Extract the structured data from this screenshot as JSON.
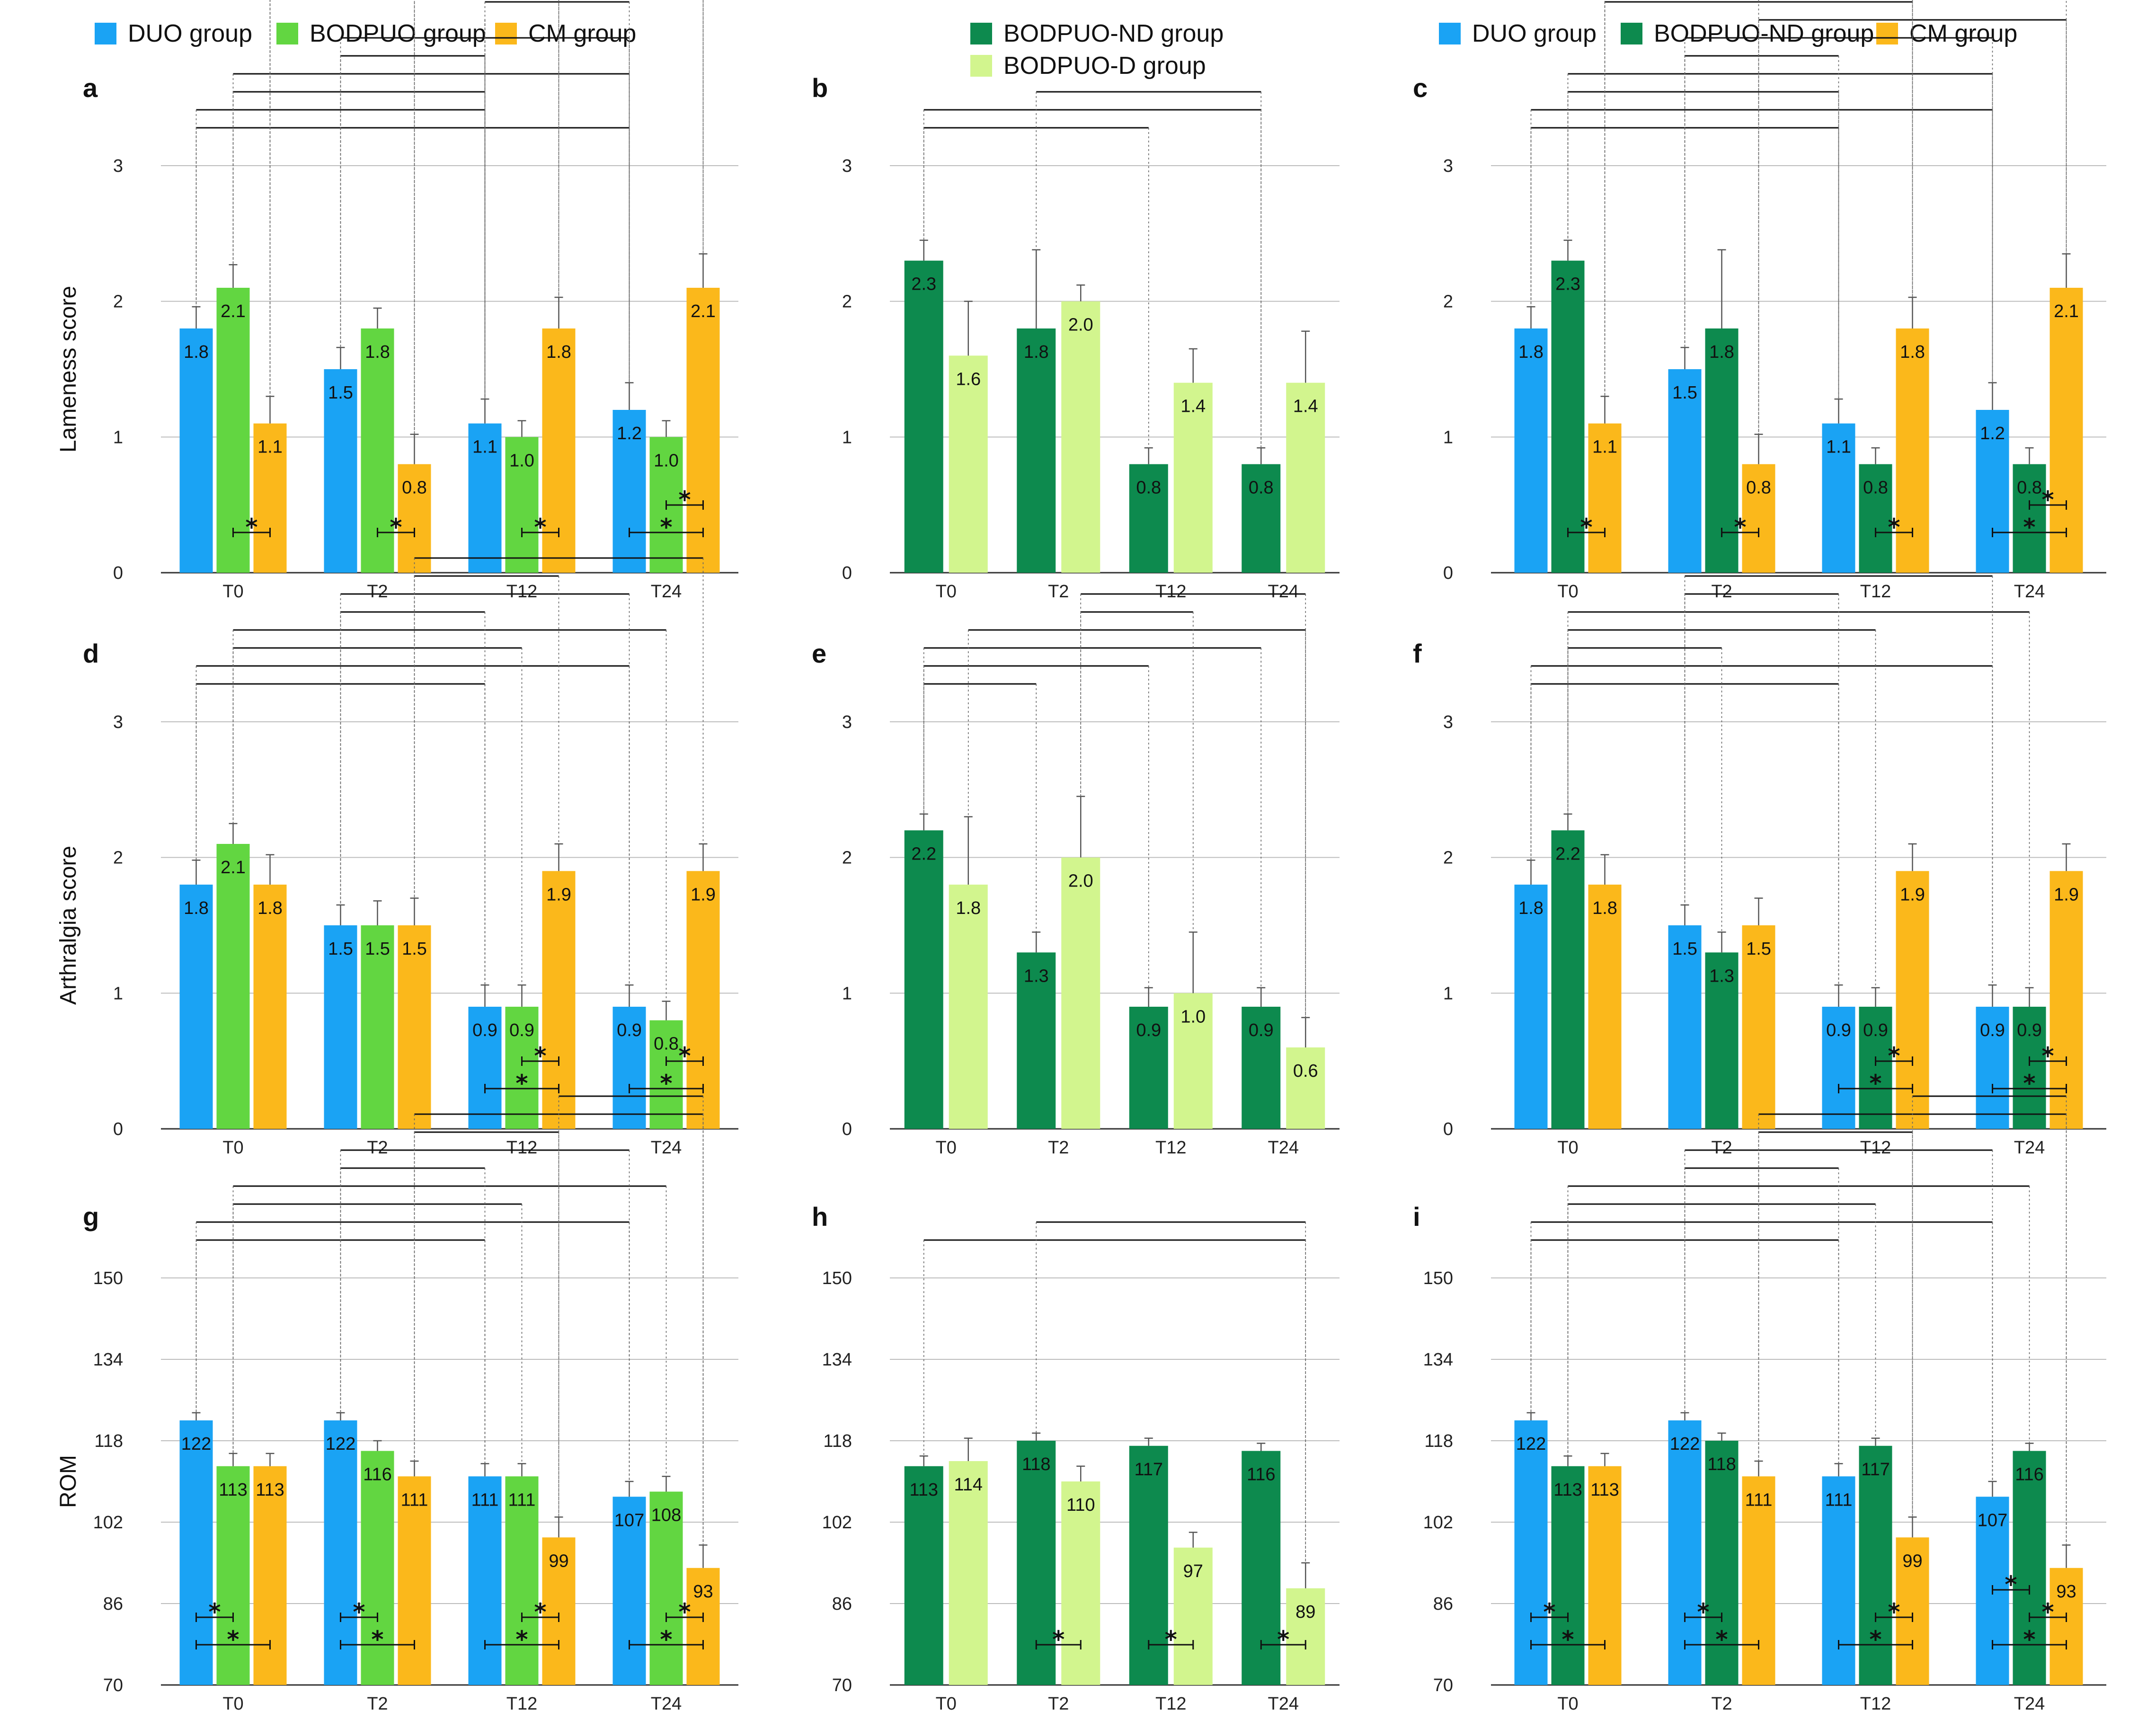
{
  "colors": {
    "DUO group": "#1aa3f4",
    "BODPUO group": "#62d641",
    "CM group": "#fbb81b",
    "BODPUO-ND group": "#0d8a4e",
    "BODPUO-D group": "#d2f58e"
  },
  "legends": [
    {
      "items": [
        "DUO group",
        "BODPUO group",
        "CM group"
      ]
    },
    {
      "items": [
        "BODPUO-ND group",
        "BODPUO-D group"
      ]
    },
    {
      "items": [
        "DUO group",
        "BODPUO-ND group",
        "CM group"
      ]
    }
  ],
  "chart_data": [
    {
      "panel": "a",
      "type": "bar",
      "ylabel": "Lameness score",
      "ylim": [
        0,
        3
      ],
      "yticks": [
        "0",
        "1",
        "2",
        "3"
      ],
      "categories": [
        "T0",
        "T2",
        "T12",
        "T24"
      ],
      "series": [
        {
          "name": "DUO group",
          "values": [
            1.8,
            1.5,
            1.1,
            1.2
          ],
          "labels": [
            "1.8",
            "1.5",
            "1.1",
            "1.2"
          ],
          "err": [
            0.16,
            0.16,
            0.18,
            0.2
          ]
        },
        {
          "name": "BODPUO group",
          "values": [
            2.1,
            1.8,
            1.0,
            1.0
          ],
          "labels": [
            "2.1",
            "1.8",
            "1.0",
            "1.0"
          ],
          "err": [
            0.17,
            0.15,
            0.12,
            0.12
          ]
        },
        {
          "name": "CM group",
          "values": [
            1.1,
            0.8,
            1.8,
            2.1
          ],
          "labels": [
            "1.1",
            "0.8",
            "1.8",
            "2.1"
          ],
          "err": [
            0.2,
            0.22,
            0.23,
            0.25
          ]
        }
      ],
      "stars": [
        [
          1,
          2
        ],
        [
          1,
          2
        ],
        [
          1,
          2
        ],
        [
          1,
          2
        ],
        [
          0,
          2
        ]
      ],
      "star_cats": [
        0,
        1,
        2,
        3,
        3
      ],
      "brackets": [
        [
          0,
          0,
          3,
          0
        ],
        [
          0,
          0,
          2,
          0
        ],
        [
          0,
          1,
          2,
          0
        ],
        [
          0,
          1,
          3,
          0
        ],
        [
          1,
          0,
          2,
          0
        ],
        [
          1,
          0,
          3,
          0
        ],
        [
          2,
          0,
          2,
          0
        ],
        [
          2,
          0,
          3,
          0
        ],
        [
          1,
          2,
          3,
          2
        ],
        [
          0,
          2,
          2,
          2
        ],
        [
          0,
          2,
          3,
          2
        ],
        [
          1,
          2,
          2,
          2
        ]
      ]
    },
    {
      "panel": "b",
      "type": "bar",
      "ylabel": "",
      "ylim": [
        0,
        3
      ],
      "yticks": [
        "0",
        "1",
        "2",
        "3"
      ],
      "categories": [
        "T0",
        "T2",
        "T12",
        "T24"
      ],
      "series": [
        {
          "name": "BODPUO-ND group",
          "values": [
            2.3,
            1.8,
            0.8,
            0.8
          ],
          "labels": [
            "2.3",
            "1.8",
            "0.8",
            "0.8"
          ],
          "err": [
            0.15,
            0.58,
            0.12,
            0.12
          ]
        },
        {
          "name": "BODPUO-D group",
          "values": [
            1.6,
            2.0,
            1.4,
            1.4
          ],
          "labels": [
            "1.6",
            "2.0",
            "1.4",
            "1.4"
          ],
          "err": [
            0.4,
            0.12,
            0.25,
            0.38
          ]
        }
      ],
      "stars": [],
      "star_cats": [],
      "brackets": [
        [
          0,
          0,
          2,
          0
        ],
        [
          0,
          0,
          3,
          0
        ],
        [
          1,
          0,
          3,
          0
        ]
      ]
    },
    {
      "panel": "c",
      "type": "bar",
      "ylabel": "",
      "ylim": [
        0,
        3
      ],
      "yticks": [
        "0",
        "1",
        "2",
        "3"
      ],
      "categories": [
        "T0",
        "T2",
        "T12",
        "T24"
      ],
      "series": [
        {
          "name": "DUO group",
          "values": [
            1.8,
            1.5,
            1.1,
            1.2
          ],
          "labels": [
            "1.8",
            "1.5",
            "1.1",
            "1.2"
          ],
          "err": [
            0.16,
            0.16,
            0.18,
            0.2
          ]
        },
        {
          "name": "BODPUO-ND group",
          "values": [
            2.3,
            1.8,
            0.8,
            0.8
          ],
          "labels": [
            "2.3",
            "1.8",
            "0.8",
            "0.8"
          ],
          "err": [
            0.15,
            0.58,
            0.12,
            0.12
          ]
        },
        {
          "name": "CM group",
          "values": [
            1.1,
            0.8,
            1.8,
            2.1
          ],
          "labels": [
            "1.1",
            "0.8",
            "1.8",
            "2.1"
          ],
          "err": [
            0.2,
            0.22,
            0.23,
            0.25
          ]
        }
      ],
      "stars": [
        [
          1,
          2
        ],
        [
          1,
          2
        ],
        [
          1,
          2
        ],
        [
          1,
          2
        ],
        [
          0,
          2
        ]
      ],
      "star_cats": [
        0,
        1,
        2,
        3,
        3
      ],
      "brackets": [
        [
          0,
          0,
          2,
          0
        ],
        [
          0,
          0,
          3,
          0
        ],
        [
          0,
          1,
          2,
          0
        ],
        [
          0,
          1,
          3,
          0
        ],
        [
          1,
          0,
          2,
          0
        ],
        [
          1,
          0,
          3,
          0
        ],
        [
          1,
          2,
          3,
          2
        ],
        [
          0,
          2,
          2,
          2
        ],
        [
          0,
          2,
          3,
          2
        ],
        [
          1,
          2,
          2,
          2
        ]
      ]
    },
    {
      "panel": "d",
      "type": "bar",
      "ylabel": "Arthralgia score",
      "ylim": [
        0,
        3
      ],
      "yticks": [
        "0",
        "1",
        "2",
        "3"
      ],
      "categories": [
        "T0",
        "T2",
        "T12",
        "T24"
      ],
      "series": [
        {
          "name": "DUO group",
          "values": [
            1.8,
            1.5,
            0.9,
            0.9
          ],
          "labels": [
            "1.8",
            "1.5",
            "0.9",
            "0.9"
          ],
          "err": [
            0.18,
            0.15,
            0.16,
            0.16
          ]
        },
        {
          "name": "BODPUO group",
          "values": [
            2.1,
            1.5,
            0.9,
            0.8
          ],
          "labels": [
            "2.1",
            "1.5",
            "0.9",
            "0.8"
          ],
          "err": [
            0.15,
            0.18,
            0.16,
            0.14
          ]
        },
        {
          "name": "CM group",
          "values": [
            1.8,
            1.5,
            1.9,
            1.9
          ],
          "labels": [
            "1.8",
            "1.5",
            "1.9",
            "1.9"
          ],
          "err": [
            0.22,
            0.2,
            0.2,
            0.2
          ]
        }
      ],
      "stars": [
        [
          1,
          2
        ],
        [
          0,
          2
        ],
        [
          1,
          2
        ],
        [
          0,
          2
        ]
      ],
      "star_cats": [
        2,
        2,
        3,
        3
      ],
      "brackets": [
        [
          0,
          0,
          2,
          0
        ],
        [
          0,
          0,
          3,
          0
        ],
        [
          0,
          1,
          2,
          1
        ],
        [
          0,
          1,
          3,
          1
        ],
        [
          1,
          0,
          2,
          0
        ],
        [
          1,
          0,
          3,
          0
        ],
        [
          1,
          2,
          2,
          2
        ],
        [
          1,
          2,
          3,
          2
        ]
      ]
    },
    {
      "panel": "e",
      "type": "bar",
      "ylabel": "",
      "ylim": [
        0,
        3
      ],
      "yticks": [
        "0",
        "1",
        "2",
        "3"
      ],
      "categories": [
        "T0",
        "T2",
        "T12",
        "T24"
      ],
      "series": [
        {
          "name": "BODPUO-ND group",
          "values": [
            2.2,
            1.3,
            0.9,
            0.9
          ],
          "labels": [
            "2.2",
            "1.3",
            "0.9",
            "0.9"
          ],
          "err": [
            0.12,
            0.15,
            0.14,
            0.14
          ]
        },
        {
          "name": "BODPUO-D group",
          "values": [
            1.8,
            2.0,
            1.0,
            0.6
          ],
          "labels": [
            "1.8",
            "2.0",
            "1.0",
            "0.6"
          ],
          "err": [
            0.5,
            0.45,
            0.45,
            0.22
          ]
        }
      ],
      "stars": [],
      "star_cats": [],
      "brackets": [
        [
          0,
          0,
          1,
          0
        ],
        [
          0,
          0,
          2,
          0
        ],
        [
          0,
          0,
          3,
          0
        ],
        [
          0,
          1,
          3,
          1
        ],
        [
          1,
          1,
          2,
          1
        ],
        [
          1,
          1,
          3,
          1
        ]
      ]
    },
    {
      "panel": "f",
      "type": "bar",
      "ylabel": "",
      "ylim": [
        0,
        3
      ],
      "yticks": [
        "0",
        "1",
        "2",
        "3"
      ],
      "categories": [
        "T0",
        "T2",
        "T12",
        "T24"
      ],
      "series": [
        {
          "name": "DUO group",
          "values": [
            1.8,
            1.5,
            0.9,
            0.9
          ],
          "labels": [
            "1.8",
            "1.5",
            "0.9",
            "0.9"
          ],
          "err": [
            0.18,
            0.15,
            0.16,
            0.16
          ]
        },
        {
          "name": "BODPUO-ND group",
          "values": [
            2.2,
            1.3,
            0.9,
            0.9
          ],
          "labels": [
            "2.2",
            "1.3",
            "0.9",
            "0.9"
          ],
          "err": [
            0.12,
            0.15,
            0.14,
            0.14
          ]
        },
        {
          "name": "CM group",
          "values": [
            1.8,
            1.5,
            1.9,
            1.9
          ],
          "labels": [
            "1.8",
            "1.5",
            "1.9",
            "1.9"
          ],
          "err": [
            0.22,
            0.2,
            0.2,
            0.2
          ]
        }
      ],
      "stars": [
        [
          1,
          2
        ],
        [
          0,
          2
        ],
        [
          1,
          2
        ],
        [
          0,
          2
        ]
      ],
      "star_cats": [
        2,
        2,
        3,
        3
      ],
      "brackets": [
        [
          0,
          0,
          2,
          0
        ],
        [
          0,
          0,
          3,
          0
        ],
        [
          0,
          1,
          1,
          1
        ],
        [
          0,
          1,
          2,
          1
        ],
        [
          0,
          1,
          3,
          1
        ],
        [
          1,
          0,
          2,
          0
        ],
        [
          1,
          0,
          3,
          0
        ]
      ]
    },
    {
      "panel": "g",
      "type": "bar",
      "ylabel": "ROM",
      "ylim": [
        70,
        150
      ],
      "yticks": [
        "70",
        "86",
        "102",
        "118",
        "134",
        "150"
      ],
      "categories": [
        "T0",
        "T2",
        "T12",
        "T24"
      ],
      "series": [
        {
          "name": "DUO group",
          "values": [
            122,
            122,
            111,
            107
          ],
          "labels": [
            "122",
            "122",
            "111",
            "107"
          ],
          "err": [
            1.5,
            1.5,
            2.5,
            3
          ]
        },
        {
          "name": "BODPUO group",
          "values": [
            113,
            116,
            111,
            108
          ],
          "labels": [
            "113",
            "116",
            "111",
            "108"
          ],
          "err": [
            2.5,
            2,
            2.5,
            3
          ]
        },
        {
          "name": "CM group",
          "values": [
            113,
            111,
            99,
            93
          ],
          "labels": [
            "113",
            "111",
            "99",
            "93"
          ],
          "err": [
            2.5,
            3,
            4,
            4.5
          ]
        }
      ],
      "stars": [
        [
          0,
          1
        ],
        [
          0,
          2
        ],
        [
          0,
          1
        ],
        [
          0,
          2
        ],
        [
          1,
          2
        ],
        [
          0,
          2
        ],
        [
          1,
          2
        ],
        [
          0,
          2
        ]
      ],
      "star_cats": [
        0,
        0,
        1,
        1,
        2,
        2,
        3,
        3
      ],
      "brackets": [
        [
          0,
          0,
          2,
          0
        ],
        [
          0,
          0,
          3,
          0
        ],
        [
          0,
          1,
          2,
          1
        ],
        [
          0,
          1,
          3,
          1
        ],
        [
          1,
          0,
          2,
          0
        ],
        [
          1,
          0,
          3,
          0
        ],
        [
          1,
          2,
          2,
          2
        ],
        [
          1,
          2,
          3,
          2
        ],
        [
          2,
          2,
          3,
          2
        ]
      ]
    },
    {
      "panel": "h",
      "type": "bar",
      "ylabel": "",
      "ylim": [
        70,
        150
      ],
      "yticks": [
        "70",
        "86",
        "102",
        "118",
        "134",
        "150"
      ],
      "categories": [
        "T0",
        "T2",
        "T12",
        "T24"
      ],
      "series": [
        {
          "name": "BODPUO-ND group",
          "values": [
            113,
            118,
            117,
            116
          ],
          "labels": [
            "113",
            "118",
            "117",
            "116"
          ],
          "err": [
            2,
            1.5,
            1.5,
            1.5
          ]
        },
        {
          "name": "BODPUO-D group",
          "values": [
            114,
            110,
            97,
            89
          ],
          "labels": [
            "114",
            "110",
            "97",
            "89"
          ],
          "err": [
            4.5,
            3,
            3,
            5
          ]
        }
      ],
      "stars": [
        [
          0,
          1
        ],
        [
          0,
          1
        ],
        [
          0,
          1
        ]
      ],
      "star_cats": [
        1,
        2,
        3
      ],
      "brackets": [
        [
          0,
          0,
          3,
          1
        ],
        [
          1,
          0,
          3,
          1
        ]
      ]
    },
    {
      "panel": "i",
      "type": "bar",
      "ylabel": "",
      "ylim": [
        70,
        150
      ],
      "yticks": [
        "70",
        "86",
        "102",
        "118",
        "134",
        "150"
      ],
      "categories": [
        "T0",
        "T2",
        "T12",
        "T24"
      ],
      "series": [
        {
          "name": "DUO group",
          "values": [
            122,
            122,
            111,
            107
          ],
          "labels": [
            "122",
            "122",
            "111",
            "107"
          ],
          "err": [
            1.5,
            1.5,
            2.5,
            3
          ]
        },
        {
          "name": "BODPUO-ND group",
          "values": [
            113,
            118,
            117,
            116
          ],
          "labels": [
            "113",
            "118",
            "117",
            "116"
          ],
          "err": [
            2,
            1.5,
            1.5,
            1.5
          ]
        },
        {
          "name": "CM group",
          "values": [
            113,
            111,
            99,
            93
          ],
          "labels": [
            "113",
            "111",
            "99",
            "93"
          ],
          "err": [
            2.5,
            3,
            4,
            4.5
          ]
        }
      ],
      "stars": [
        [
          0,
          1
        ],
        [
          0,
          2
        ],
        [
          0,
          1
        ],
        [
          0,
          2
        ],
        [
          1,
          2
        ],
        [
          0,
          2
        ],
        [
          0,
          1
        ],
        [
          1,
          2
        ],
        [
          0,
          2
        ]
      ],
      "star_cats": [
        0,
        0,
        1,
        1,
        2,
        2,
        3,
        3,
        3
      ],
      "brackets": [
        [
          0,
          0,
          2,
          0
        ],
        [
          0,
          0,
          3,
          0
        ],
        [
          0,
          1,
          2,
          1
        ],
        [
          0,
          1,
          3,
          1
        ],
        [
          1,
          0,
          2,
          0
        ],
        [
          1,
          0,
          3,
          0
        ],
        [
          1,
          2,
          2,
          2
        ],
        [
          1,
          2,
          3,
          2
        ],
        [
          2,
          2,
          3,
          2
        ]
      ]
    }
  ]
}
